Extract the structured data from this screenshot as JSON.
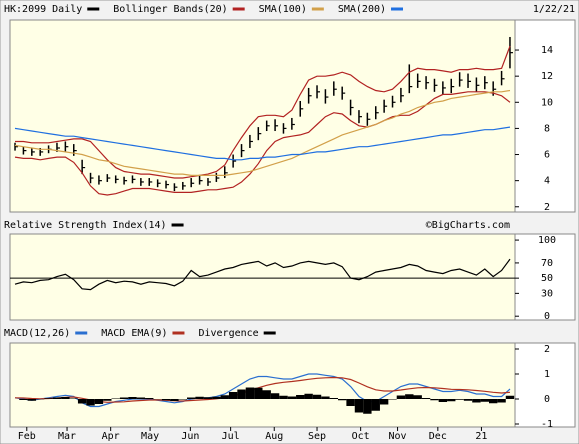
{
  "chart_data": [
    {
      "type": "hlc",
      "date": "1/22/21",
      "ylim": [
        1.6,
        16.3
      ],
      "yticks": [
        2,
        4,
        6,
        8,
        10,
        12,
        14
      ],
      "series": [
        {
          "name": "HK:2099 Daily",
          "color": "#000000",
          "close": [
            6.6,
            6.3,
            6.2,
            6.2,
            6.4,
            6.5,
            6.6,
            6.3,
            5.0,
            4.2,
            4.0,
            4.2,
            4.1,
            4.0,
            4.1,
            3.9,
            3.9,
            3.8,
            3.7,
            3.5,
            3.6,
            3.8,
            4.0,
            3.9,
            4.2,
            4.6,
            5.5,
            6.3,
            7.0,
            7.6,
            8.2,
            8.2,
            8.0,
            8.3,
            9.5,
            10.5,
            10.8,
            10.4,
            11.0,
            10.7,
            9.6,
            8.9,
            8.7,
            9.2,
            9.7,
            10.0,
            10.5,
            11.2,
            11.6,
            11.5,
            11.3,
            11.1,
            11.2,
            11.7,
            11.6,
            11.3,
            11.5,
            11.0,
            11.8,
            13.8
          ],
          "high": [
            6.9,
            6.6,
            6.5,
            6.5,
            6.7,
            6.9,
            7.0,
            6.8,
            5.6,
            4.6,
            4.4,
            4.5,
            4.4,
            4.3,
            4.4,
            4.2,
            4.2,
            4.1,
            4.0,
            3.8,
            3.9,
            4.2,
            4.4,
            4.2,
            4.6,
            5.1,
            6.0,
            6.8,
            7.5,
            8.1,
            8.6,
            8.7,
            8.4,
            8.8,
            10.1,
            11.1,
            11.3,
            11.0,
            11.6,
            11.2,
            10.2,
            9.4,
            9.2,
            9.7,
            10.2,
            10.5,
            11.1,
            12.9,
            12.2,
            12.0,
            11.8,
            11.6,
            11.8,
            12.3,
            12.2,
            11.9,
            12.0,
            11.6,
            12.4,
            15.0
          ],
          "low": [
            6.3,
            6.0,
            5.9,
            5.9,
            6.1,
            6.2,
            6.2,
            5.9,
            4.5,
            3.8,
            3.7,
            3.9,
            3.8,
            3.7,
            3.8,
            3.6,
            3.6,
            3.5,
            3.4,
            3.2,
            3.3,
            3.5,
            3.7,
            3.6,
            3.9,
            4.2,
            5.0,
            5.8,
            6.5,
            7.1,
            7.8,
            7.8,
            7.6,
            7.9,
            8.9,
            9.9,
            10.3,
            9.9,
            10.5,
            10.2,
            9.0,
            8.4,
            8.2,
            8.7,
            9.2,
            9.6,
            10.0,
            10.7,
            11.1,
            11.0,
            10.8,
            10.6,
            10.7,
            11.2,
            11.1,
            10.8,
            11.0,
            10.5,
            11.3,
            12.6
          ]
        },
        {
          "name": "Bollinger Bands(20)",
          "color": "#b22222",
          "upper": [
            7.0,
            7.0,
            6.9,
            6.9,
            6.9,
            7.0,
            7.1,
            7.2,
            7.2,
            7.0,
            6.3,
            5.6,
            5.0,
            4.7,
            4.6,
            4.5,
            4.5,
            4.4,
            4.3,
            4.2,
            4.2,
            4.3,
            4.4,
            4.5,
            4.7,
            5.2,
            6.3,
            7.3,
            8.2,
            8.9,
            9.0,
            9.0,
            8.9,
            9.4,
            10.6,
            11.7,
            12.0,
            12.0,
            12.1,
            12.3,
            12.1,
            11.6,
            11.2,
            10.9,
            10.8,
            11.0,
            11.6,
            12.3,
            12.6,
            12.5,
            12.5,
            12.4,
            12.3,
            12.5,
            12.5,
            12.6,
            12.5,
            12.5,
            12.6,
            14.3
          ],
          "lower": [
            5.8,
            5.7,
            5.7,
            5.6,
            5.7,
            5.8,
            5.8,
            5.4,
            4.6,
            3.6,
            3.0,
            2.9,
            3.0,
            3.2,
            3.4,
            3.4,
            3.4,
            3.3,
            3.2,
            3.1,
            3.1,
            3.1,
            3.2,
            3.3,
            3.3,
            3.4,
            3.5,
            3.9,
            4.5,
            5.3,
            6.3,
            7.0,
            7.3,
            7.4,
            7.5,
            7.7,
            8.3,
            8.9,
            9.2,
            9.1,
            8.6,
            8.2,
            8.1,
            8.3,
            8.6,
            8.9,
            9.0,
            9.0,
            9.3,
            9.8,
            10.3,
            10.6,
            10.6,
            10.7,
            10.8,
            10.8,
            10.8,
            10.7,
            10.5,
            10.0
          ]
        },
        {
          "name": "SMA(100)",
          "color": "#d2a04a",
          "values": [
            6.7,
            6.6,
            6.5,
            6.4,
            6.4,
            6.3,
            6.2,
            6.1,
            6.0,
            5.8,
            5.6,
            5.5,
            5.3,
            5.1,
            5.0,
            4.9,
            4.8,
            4.7,
            4.6,
            4.5,
            4.5,
            4.4,
            4.4,
            4.4,
            4.4,
            4.4,
            4.5,
            4.6,
            4.7,
            4.9,
            5.1,
            5.3,
            5.5,
            5.7,
            6.0,
            6.3,
            6.6,
            6.9,
            7.2,
            7.5,
            7.7,
            7.9,
            8.1,
            8.3,
            8.6,
            8.8,
            9.1,
            9.3,
            9.6,
            9.8,
            10.0,
            10.1,
            10.3,
            10.4,
            10.5,
            10.6,
            10.7,
            10.8,
            10.8,
            10.9
          ]
        },
        {
          "name": "SMA(200)",
          "color": "#1f6fe0",
          "values": [
            8.0,
            7.9,
            7.8,
            7.7,
            7.6,
            7.5,
            7.4,
            7.4,
            7.3,
            7.2,
            7.1,
            7.0,
            6.9,
            6.8,
            6.7,
            6.6,
            6.5,
            6.4,
            6.3,
            6.2,
            6.1,
            6.0,
            5.9,
            5.8,
            5.7,
            5.7,
            5.6,
            5.6,
            5.7,
            5.7,
            5.8,
            5.8,
            5.9,
            6.0,
            6.0,
            6.1,
            6.2,
            6.2,
            6.3,
            6.4,
            6.5,
            6.6,
            6.6,
            6.7,
            6.8,
            6.9,
            7.0,
            7.1,
            7.2,
            7.3,
            7.4,
            7.5,
            7.5,
            7.6,
            7.7,
            7.8,
            7.9,
            7.9,
            8.0,
            8.1
          ]
        }
      ]
    },
    {
      "type": "line",
      "source": "©BigCharts.com",
      "ylim": [
        -5,
        108
      ],
      "yticks": [
        0,
        30,
        50,
        70,
        100
      ],
      "midline": 50,
      "series": [
        {
          "name": "Relative Strength Index(14)",
          "color": "#000000",
          "values": [
            42,
            45,
            44,
            47,
            48,
            52,
            55,
            48,
            36,
            35,
            42,
            47,
            44,
            46,
            45,
            42,
            45,
            44,
            43,
            40,
            46,
            60,
            52,
            54,
            58,
            62,
            64,
            68,
            70,
            72,
            66,
            70,
            64,
            66,
            70,
            72,
            70,
            68,
            70,
            65,
            50,
            48,
            52,
            58,
            60,
            62,
            64,
            68,
            66,
            60,
            58,
            56,
            60,
            62,
            58,
            54,
            62,
            52,
            60,
            75
          ]
        }
      ]
    },
    {
      "type": "line",
      "ylim": [
        -1.12,
        2.24
      ],
      "yticks": [
        -1,
        0,
        1,
        2
      ],
      "xlim": [
        -0.6,
        59.6
      ],
      "xticks": [
        {
          "value": 1.4,
          "label": "Feb"
        },
        {
          "value": 6.2,
          "label": "Mar"
        },
        {
          "value": 11.4,
          "label": "Apr"
        },
        {
          "value": 16.1,
          "label": "May"
        },
        {
          "value": 20.9,
          "label": "Jun"
        },
        {
          "value": 25.7,
          "label": "Jul"
        },
        {
          "value": 30.9,
          "label": "Aug"
        },
        {
          "value": 36,
          "label": "Sep"
        },
        {
          "value": 41.2,
          "label": "Oct"
        },
        {
          "value": 45.6,
          "label": "Nov"
        },
        {
          "value": 50.4,
          "label": "Dec"
        },
        {
          "value": 55.6,
          "label": "21"
        }
      ],
      "series": [
        {
          "name": "MACD(12,26)",
          "color": "#2a6fd0",
          "values": [
            0.05,
            0.0,
            -0.05,
            0.0,
            0.05,
            0.1,
            0.15,
            0.1,
            -0.15,
            -0.3,
            -0.3,
            -0.2,
            -0.1,
            -0.05,
            0.0,
            0.0,
            0.0,
            -0.05,
            -0.1,
            -0.15,
            -0.1,
            0.0,
            0.05,
            0.05,
            0.1,
            0.2,
            0.4,
            0.6,
            0.8,
            0.9,
            0.9,
            0.85,
            0.8,
            0.8,
            0.9,
            1.0,
            1.0,
            0.95,
            0.9,
            0.8,
            0.5,
            0.1,
            -0.1,
            -0.1,
            0.1,
            0.3,
            0.5,
            0.6,
            0.6,
            0.5,
            0.4,
            0.3,
            0.3,
            0.35,
            0.3,
            0.2,
            0.2,
            0.1,
            0.1,
            0.4
          ]
        },
        {
          "name": "MACD EMA(9)",
          "color": "#b03020",
          "values": [
            0.05,
            0.04,
            0.02,
            0.01,
            0.02,
            0.04,
            0.07,
            0.08,
            0.03,
            -0.04,
            -0.1,
            -0.13,
            -0.12,
            -0.11,
            -0.08,
            -0.06,
            -0.04,
            -0.04,
            -0.05,
            -0.07,
            -0.08,
            -0.06,
            -0.04,
            -0.02,
            0.01,
            0.05,
            0.12,
            0.22,
            0.34,
            0.45,
            0.55,
            0.62,
            0.67,
            0.7,
            0.74,
            0.79,
            0.83,
            0.85,
            0.86,
            0.85,
            0.78,
            0.64,
            0.49,
            0.37,
            0.32,
            0.32,
            0.36,
            0.41,
            0.45,
            0.46,
            0.45,
            0.42,
            0.39,
            0.38,
            0.37,
            0.34,
            0.31,
            0.27,
            0.24,
            0.27
          ]
        },
        {
          "name": "Divergence",
          "color": "#000000",
          "style": "bars",
          "values": [
            0,
            -0.04,
            -0.07,
            -0.01,
            0.03,
            0.06,
            0.08,
            0.02,
            -0.18,
            -0.26,
            -0.2,
            -0.07,
            0.02,
            0.06,
            0.08,
            0.06,
            0.04,
            -0.01,
            -0.05,
            -0.08,
            -0.02,
            0.06,
            0.09,
            0.07,
            0.09,
            0.15,
            0.28,
            0.38,
            0.46,
            0.45,
            0.35,
            0.23,
            0.13,
            0.1,
            0.16,
            0.21,
            0.17,
            0.1,
            0.04,
            -0.05,
            -0.28,
            -0.54,
            -0.59,
            -0.47,
            -0.22,
            -0.02,
            0.14,
            0.19,
            0.15,
            0.04,
            -0.05,
            -0.12,
            -0.09,
            -0.03,
            -0.07,
            -0.14,
            -0.11,
            -0.17,
            -0.14,
            0.13
          ]
        }
      ]
    }
  ]
}
